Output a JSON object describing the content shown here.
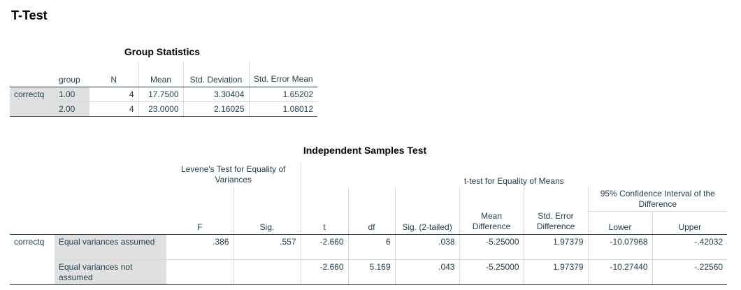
{
  "page_title": "T-Test",
  "group_statistics": {
    "caption": "Group Statistics",
    "headers": {
      "group": "group",
      "n": "N",
      "mean": "Mean",
      "std_dev": "Std. Deviation",
      "std_err": "Std. Error Mean"
    },
    "variable": "correctq",
    "rows": [
      {
        "group": "1.00",
        "n": "4",
        "mean": "17.7500",
        "std_dev": "3.30404",
        "std_err": "1.65202"
      },
      {
        "group": "2.00",
        "n": "4",
        "mean": "23.0000",
        "std_dev": "2.16025",
        "std_err": "1.08012"
      }
    ]
  },
  "independent_samples": {
    "caption": "Independent Samples Test",
    "headers": {
      "levene": "Levene's Test for Equality of Variances",
      "ttest": "t-test for Equality of Means",
      "ci": "95% Confidence Interval of the Difference",
      "f": "F",
      "sig": "Sig.",
      "t": "t",
      "df": "df",
      "sig2": "Sig. (2-tailed)",
      "mean_diff": "Mean Difference",
      "se_diff": "Std. Error Difference",
      "lower": "Lower",
      "upper": "Upper"
    },
    "variable": "correctq",
    "rows": [
      {
        "label": "Equal variances assumed",
        "f": ".386",
        "sig": ".557",
        "t": "-2.660",
        "df": "6",
        "sig2": ".038",
        "mean_diff": "-5.25000",
        "se_diff": "1.97379",
        "lower": "-10.07968",
        "upper": "-.42032"
      },
      {
        "label": "Equal variances not assumed",
        "f": "",
        "sig": "",
        "t": "-2.660",
        "df": "5.169",
        "sig2": ".043",
        "mean_diff": "-5.25000",
        "se_diff": "1.97379",
        "lower": "-10.27440",
        "upper": "-.22560"
      }
    ]
  }
}
